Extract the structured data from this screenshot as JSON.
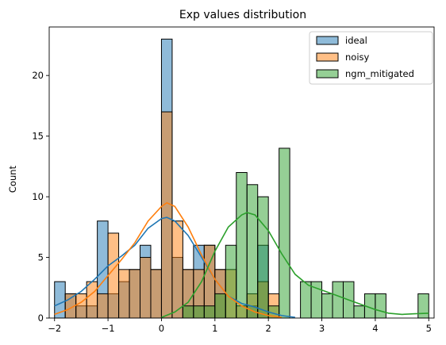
{
  "chart_data": {
    "type": "bar",
    "subtype": "overlaid histogram with kde",
    "title": "Exp values distribution",
    "xlabel": "",
    "ylabel": "Count",
    "xlim": [
      -2.1,
      5.1
    ],
    "ylim": [
      0,
      24
    ],
    "grid": false,
    "legend_position": "top-right",
    "xticks": [
      -2,
      -1,
      0,
      1,
      2,
      3,
      4,
      5
    ],
    "yticks": [
      0,
      5,
      10,
      15,
      20
    ],
    "bin_edges": [
      -2.0,
      -1.8,
      -1.6,
      -1.4,
      -1.2,
      -1.0,
      -0.8,
      -0.6,
      -0.4,
      -0.2,
      0.0,
      0.2,
      0.4,
      0.6,
      0.8,
      1.0,
      1.2,
      1.4,
      1.6,
      1.8,
      2.0,
      2.2,
      2.4,
      2.6,
      2.8,
      3.0,
      3.2,
      3.4,
      3.6,
      3.8,
      4.0,
      4.2,
      4.4,
      4.6,
      4.8,
      5.0
    ],
    "series": [
      {
        "name": "ideal",
        "color": "#1f77b4",
        "counts": [
          3,
          2,
          1,
          1,
          8,
          2,
          3,
          4,
          6,
          4,
          23,
          5,
          4,
          6,
          6,
          4,
          0,
          0,
          1,
          6,
          0,
          0,
          0,
          0,
          0,
          0,
          0,
          0,
          0,
          0,
          0,
          0,
          0,
          0,
          0
        ],
        "kde_x": [
          -2.0,
          -1.75,
          -1.5,
          -1.25,
          -1.0,
          -0.75,
          -0.5,
          -0.25,
          0.0,
          0.1,
          0.25,
          0.5,
          0.75,
          1.0,
          1.25,
          1.5,
          1.75,
          2.0,
          2.25,
          2.5
        ],
        "kde_y": [
          1.0,
          1.5,
          2.2,
          3.2,
          4.3,
          5.1,
          6.0,
          7.4,
          8.2,
          8.3,
          8.0,
          6.8,
          5.0,
          3.2,
          1.8,
          1.2,
          0.9,
          0.5,
          0.2,
          0.05
        ]
      },
      {
        "name": "noisy",
        "color": "#ff7f0e",
        "counts": [
          0,
          2,
          2,
          3,
          2,
          7,
          4,
          4,
          5,
          4,
          17,
          8,
          4,
          4,
          6,
          4,
          4,
          1,
          2,
          3,
          2,
          0,
          0,
          0,
          0,
          0,
          0,
          0,
          0,
          0,
          0,
          0,
          0,
          0,
          0
        ],
        "kde_x": [
          -2.0,
          -1.75,
          -1.5,
          -1.25,
          -1.0,
          -0.75,
          -0.5,
          -0.25,
          0.0,
          0.1,
          0.25,
          0.5,
          0.75,
          1.0,
          1.25,
          1.5,
          1.75,
          2.0,
          2.25
        ],
        "kde_y": [
          0.3,
          0.7,
          1.3,
          2.2,
          3.5,
          4.8,
          6.2,
          8.0,
          9.2,
          9.5,
          9.2,
          7.5,
          5.2,
          3.2,
          1.8,
          1.0,
          0.5,
          0.2,
          0.05
        ]
      },
      {
        "name": "ngm_mitigated",
        "color": "#2ca02c",
        "counts": [
          0,
          0,
          0,
          0,
          0,
          0,
          0,
          0,
          0,
          0,
          0,
          0,
          1,
          1,
          1,
          2,
          6,
          12,
          11,
          10,
          1,
          14,
          0,
          3,
          3,
          2,
          3,
          3,
          1,
          2,
          2,
          0,
          0,
          0,
          2
        ],
        "kde_x": [
          0.0,
          0.25,
          0.5,
          0.75,
          1.0,
          1.25,
          1.5,
          1.6,
          1.75,
          2.0,
          2.25,
          2.5,
          2.75,
          3.0,
          3.25,
          3.5,
          3.75,
          4.0,
          4.25,
          4.5,
          4.75,
          5.0
        ],
        "kde_y": [
          0.05,
          0.5,
          1.3,
          3.0,
          5.5,
          7.5,
          8.5,
          8.7,
          8.5,
          7.2,
          5.3,
          3.6,
          2.7,
          2.3,
          1.9,
          1.5,
          1.1,
          0.7,
          0.4,
          0.3,
          0.35,
          0.4
        ]
      }
    ]
  }
}
